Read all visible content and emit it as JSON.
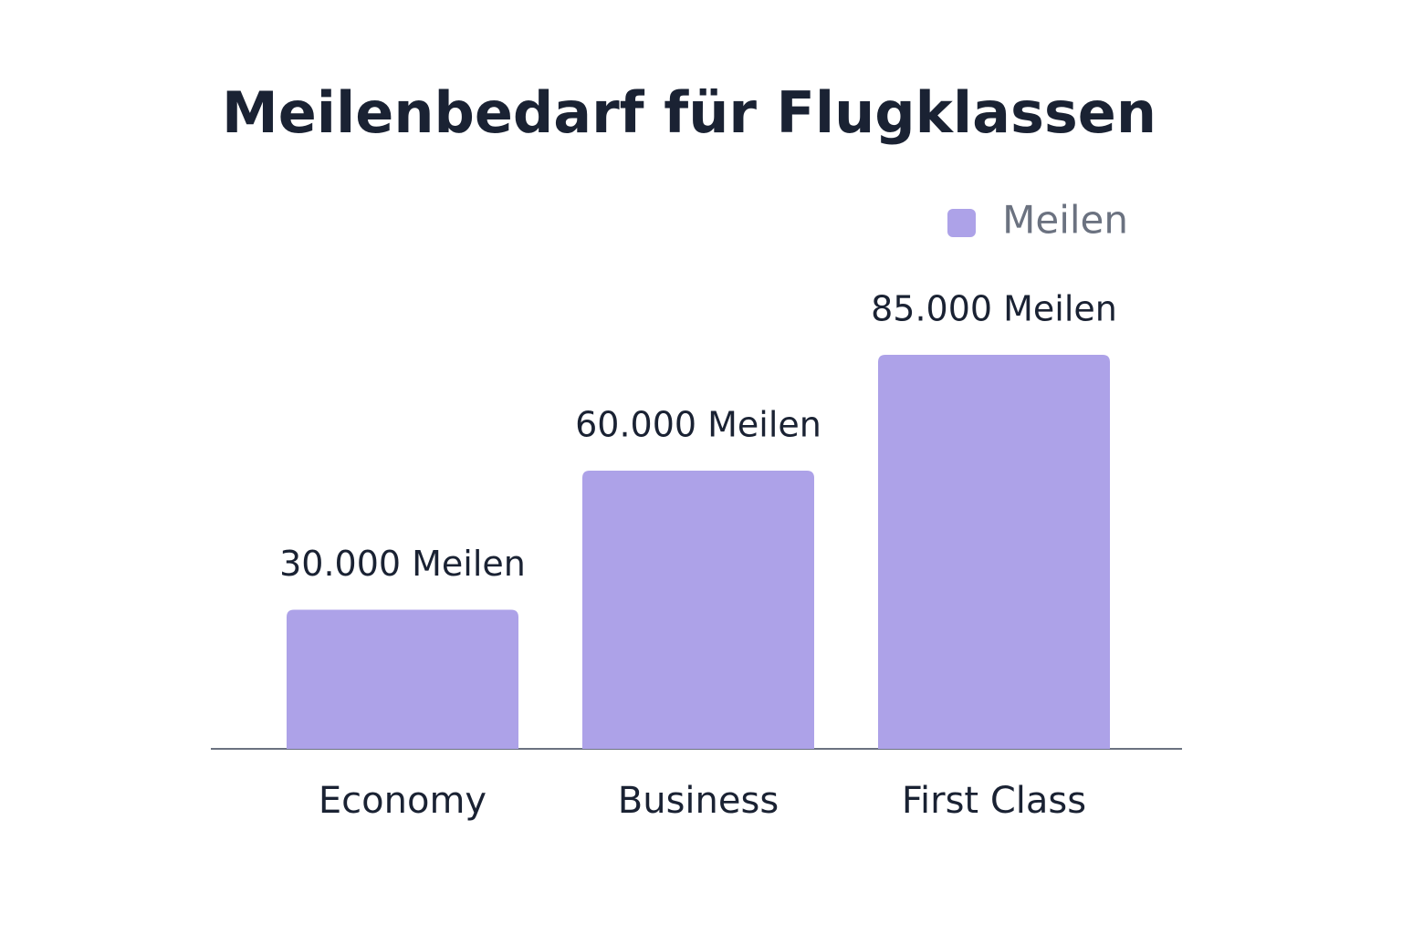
{
  "chart_data": {
    "type": "bar",
    "title": "Meilenbedarf für Flugklassen",
    "categories": [
      "Economy",
      "Business",
      "First Class"
    ],
    "series": [
      {
        "name": "Meilen",
        "color": "#ada2e8",
        "values": [
          30000,
          60000,
          85000
        ],
        "value_labels": [
          "30.000 Meilen",
          "60.000 Meilen",
          "85.000 Meilen"
        ]
      }
    ],
    "legend": "top-right"
  }
}
